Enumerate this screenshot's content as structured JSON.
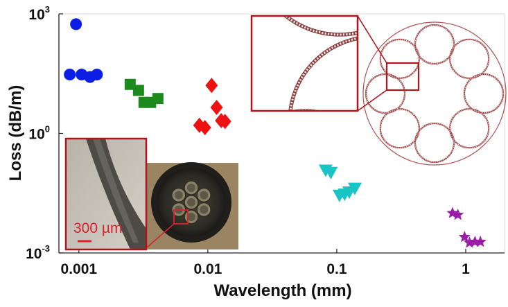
{
  "chart_data": {
    "type": "scatter",
    "xlabel": "Wavelength (mm)",
    "ylabel": "Loss (dB/m)",
    "xscale": "log",
    "yscale": "log",
    "xlim": [
      0.0007,
      2
    ],
    "ylim": [
      0.001,
      1000
    ],
    "grid": false,
    "x_ticks": [
      {
        "value": 0.001,
        "label": "0.001"
      },
      {
        "value": 0.01,
        "label": "0.01"
      },
      {
        "value": 0.1,
        "label": "0.1"
      },
      {
        "value": 1,
        "label": "1"
      }
    ],
    "y_ticks": [
      {
        "value": 1000,
        "base": "10",
        "exp": "3"
      },
      {
        "value": 1,
        "base": "10",
        "exp": "0"
      },
      {
        "value": 0.001,
        "base": "10",
        "exp": "-3"
      }
    ],
    "series": [
      {
        "marker": "circle",
        "color": "#0a1ee6",
        "points": [
          [
            0.00095,
            550
          ],
          [
            0.00085,
            30
          ],
          [
            0.00105,
            30
          ],
          [
            0.00122,
            26
          ],
          [
            0.00138,
            30
          ]
        ]
      },
      {
        "marker": "square",
        "color": "#1e8a1e",
        "points": [
          [
            0.0025,
            17
          ],
          [
            0.0029,
            12
          ],
          [
            0.0032,
            6
          ],
          [
            0.0036,
            6
          ],
          [
            0.0041,
            7.5
          ]
        ]
      },
      {
        "marker": "diamond",
        "color": "#ee1111",
        "points": [
          [
            0.0107,
            16
          ],
          [
            0.0117,
            4.5
          ],
          [
            0.0086,
            1.6
          ],
          [
            0.0095,
            1.4
          ],
          [
            0.0127,
            2.1
          ],
          [
            0.0136,
            2.0
          ]
        ]
      },
      {
        "marker": "triangle-down",
        "color": "#18c4c4",
        "points": [
          [
            0.082,
            0.12
          ],
          [
            0.09,
            0.105
          ],
          [
            0.105,
            0.028
          ],
          [
            0.115,
            0.03
          ],
          [
            0.125,
            0.034
          ],
          [
            0.138,
            0.042
          ]
        ]
      },
      {
        "marker": "star",
        "color": "#9a1fa6",
        "points": [
          [
            0.79,
            0.01
          ],
          [
            0.87,
            0.009
          ],
          [
            0.98,
            0.0025
          ],
          [
            1.07,
            0.0018
          ],
          [
            1.18,
            0.0019
          ],
          [
            1.3,
            0.0019
          ]
        ]
      }
    ]
  },
  "insets": {
    "photo_scale_label": "300 µm"
  },
  "colors": {
    "inset_frame": "#b3141c",
    "fiber_ring": "#b05050",
    "axis": "#222222"
  }
}
